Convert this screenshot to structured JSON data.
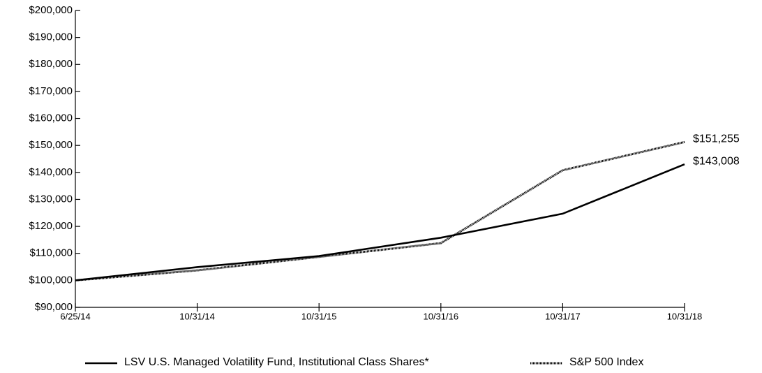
{
  "chart_data": {
    "type": "line",
    "categories": [
      "6/25/14",
      "10/31/14",
      "10/31/15",
      "10/31/16",
      "10/31/17",
      "10/31/18"
    ],
    "series": [
      {
        "name": "LSV U.S. Managed Volatility Fund, Institutional Class Shares*",
        "color": "#000000",
        "style": "solid",
        "values": [
          100000,
          104900,
          109000,
          115800,
          124700,
          143008
        ],
        "value_labels": [
          null,
          null,
          null,
          null,
          null,
          "$143,008"
        ]
      },
      {
        "name": "S&P 500 Index",
        "color": "#000000",
        "style": "dotted",
        "values": [
          100000,
          103700,
          108700,
          113800,
          140800,
          151255
        ],
        "value_labels": [
          null,
          null,
          null,
          null,
          null,
          "$151,255"
        ]
      }
    ],
    "ylim": [
      90000,
      200000
    ],
    "yticks": [
      {
        "value": 90000,
        "label": "$90,000"
      },
      {
        "value": 100000,
        "label": "$100,000"
      },
      {
        "value": 110000,
        "label": "$110,000"
      },
      {
        "value": 120000,
        "label": "$120,000"
      },
      {
        "value": 130000,
        "label": "$130,000"
      },
      {
        "value": 140000,
        "label": "$140,000"
      },
      {
        "value": 150000,
        "label": "$150,000"
      },
      {
        "value": 160000,
        "label": "$160,000"
      },
      {
        "value": 170000,
        "label": "$170,000"
      },
      {
        "value": 180000,
        "label": "$180,000"
      },
      {
        "value": 190000,
        "label": "$190,000"
      },
      {
        "value": 200000,
        "label": "$200,000"
      }
    ],
    "grid": false,
    "legend": "bottom"
  }
}
